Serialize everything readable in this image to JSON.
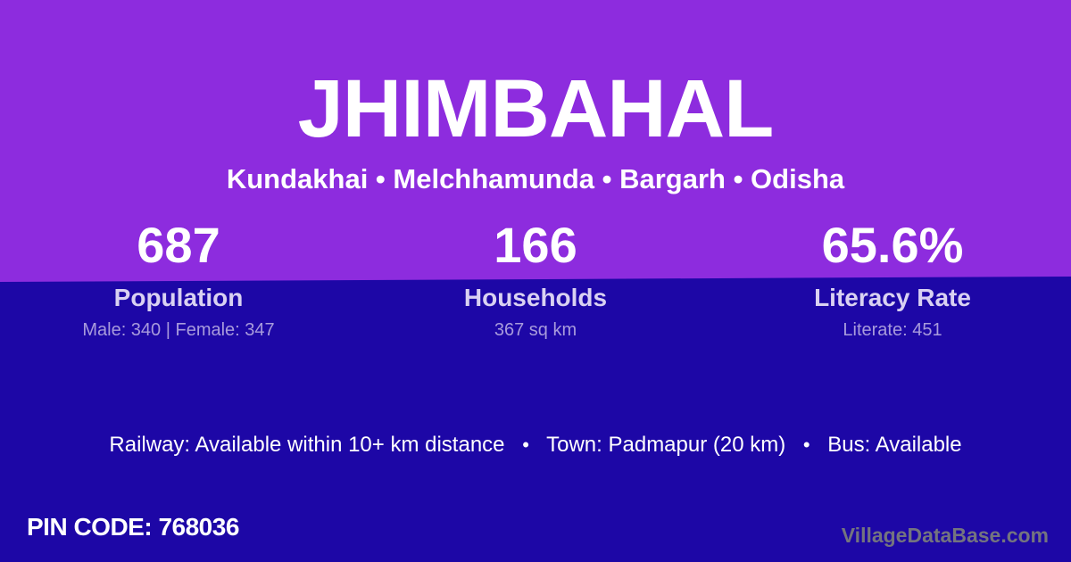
{
  "colors": {
    "top_background": "#8D2CDE",
    "bottom_background": "#1D07A6",
    "primary_text": "#FFFFFF",
    "stat_label_text": "#D9D1F2",
    "stat_detail_text": "#A89BDC",
    "watermark_text": "#74747F"
  },
  "header": {
    "title": "JHIMBAHAL",
    "location": "Kundakhai • Melchhamunda • Bargarh • Odisha"
  },
  "stats": [
    {
      "value": "687",
      "label": "Population",
      "detail": "Male: 340 | Female: 347"
    },
    {
      "value": "166",
      "label": "Households",
      "detail": "367 sq km"
    },
    {
      "value": "65.6%",
      "label": "Literacy Rate",
      "detail": "Literate: 451"
    }
  ],
  "amenities": {
    "railway": "Railway: Available within 10+ km distance",
    "town": "Town: Padmapur (20 km)",
    "bus": "Bus: Available",
    "separator": "•"
  },
  "footer": {
    "pin_code": "PIN CODE: 768036",
    "watermark": "VillageDataBase.com"
  }
}
